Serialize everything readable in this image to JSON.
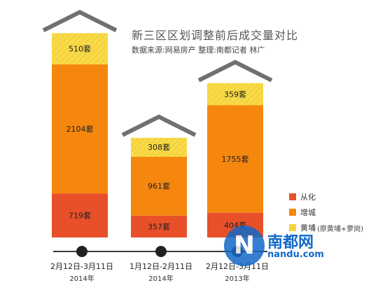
{
  "header": {
    "title": "新三区区划调整前后成交量对比",
    "subtitle": "数据来源:网易房产   整理:南都记者 林广"
  },
  "legend": {
    "items": [
      {
        "label": "从化",
        "color": "#e8502a",
        "note": ""
      },
      {
        "label": "增城",
        "color": "#f5870f",
        "note": ""
      },
      {
        "label": "黄埔",
        "color": "#f6d53a",
        "note": "(原黄埔+萝岗)"
      }
    ]
  },
  "watermark": {
    "mark": "N",
    "name": "南都网",
    "url": "nandu.com"
  },
  "colors": {
    "roof": "#707070",
    "timeline": "#3a3a3a",
    "conghua": "#e8502a",
    "zengcheng": "#f5870f",
    "huangpu": "#f6d53a"
  },
  "chart_data": {
    "type": "bar",
    "stacked": true,
    "unit": "套",
    "categories": [
      {
        "date": "2月12日-3月11日",
        "year": "2014年"
      },
      {
        "date": "1月12日-2月11日",
        "year": "2014年"
      },
      {
        "date": "2月12日-3月11日",
        "year": "2013年"
      }
    ],
    "series": [
      {
        "name": "从化",
        "values": [
          719,
          357,
          404
        ]
      },
      {
        "name": "增城",
        "values": [
          2104,
          961,
          1755
        ]
      },
      {
        "name": "黄埔",
        "values": [
          510,
          308,
          359
        ]
      }
    ]
  }
}
